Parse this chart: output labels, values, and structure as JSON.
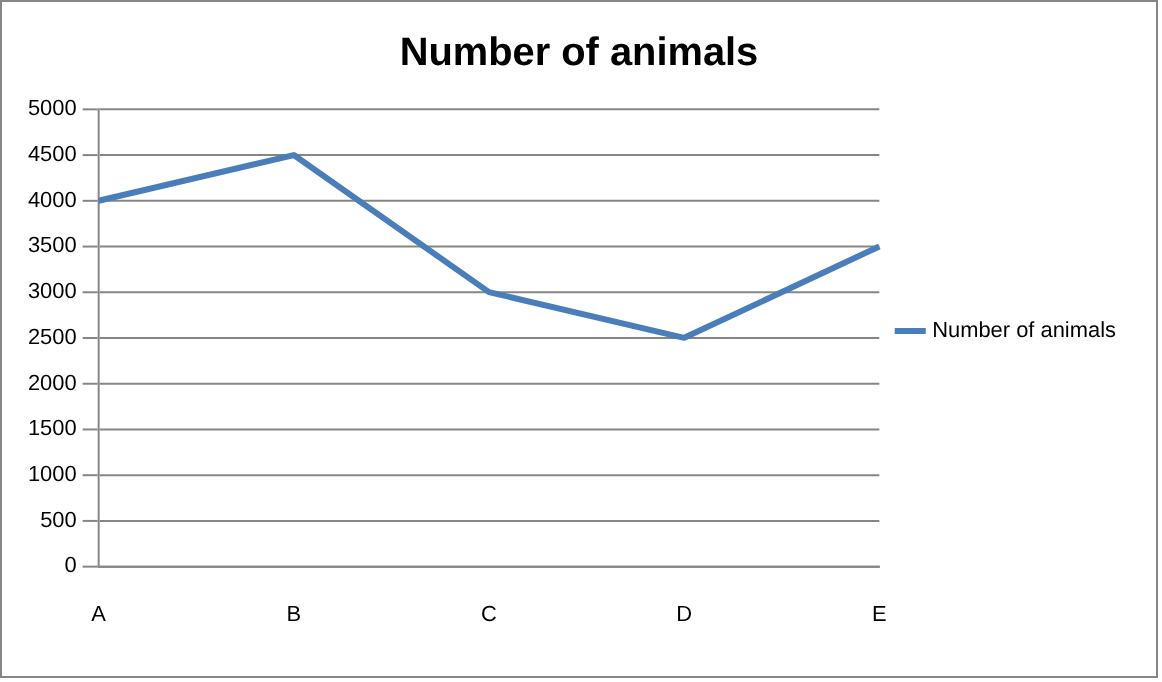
{
  "chart_data": {
    "type": "line",
    "title": "Number of animals",
    "categories": [
      "A",
      "B",
      "C",
      "D",
      "E"
    ],
    "series": [
      {
        "name": "Number of animals",
        "color": "#4a7ebb",
        "values": [
          4000,
          4500,
          3000,
          2500,
          3500
        ]
      }
    ],
    "ylim": [
      0,
      5000
    ],
    "yticks": [
      0,
      500,
      1000,
      1500,
      2000,
      2500,
      3000,
      3500,
      4000,
      4500,
      5000
    ],
    "grid": "y",
    "legend": "right",
    "marker": "none",
    "line_style": "solid"
  }
}
